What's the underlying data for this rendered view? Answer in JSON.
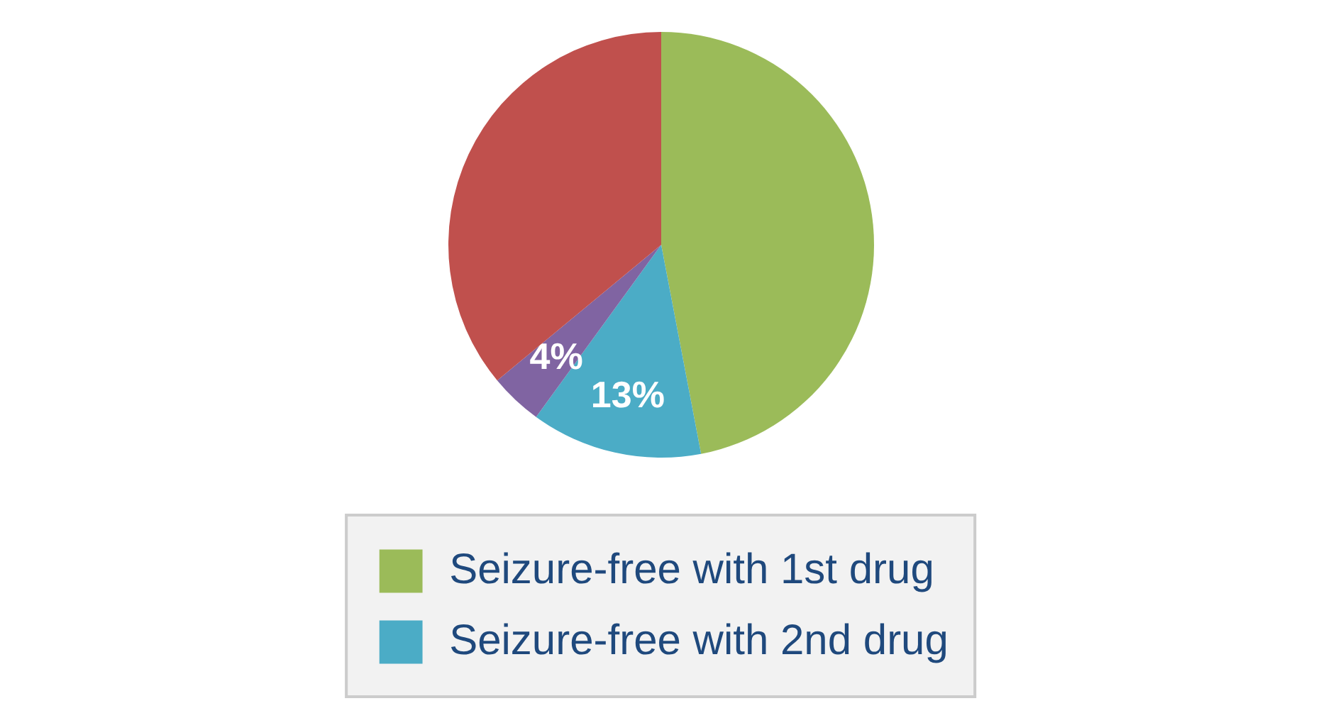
{
  "chart_data": {
    "type": "pie",
    "categories": [
      "Seizure-free with 1st drug",
      "Seizure-free with 2nd drug",
      null,
      null
    ],
    "values": [
      47,
      13,
      4,
      36
    ],
    "colors": [
      "#9bbb59",
      "#4bacc6",
      "#8064a2",
      "#c0504d"
    ],
    "value_labels": [
      null,
      "13%",
      "4%",
      null
    ],
    "legend": "bottom"
  }
}
